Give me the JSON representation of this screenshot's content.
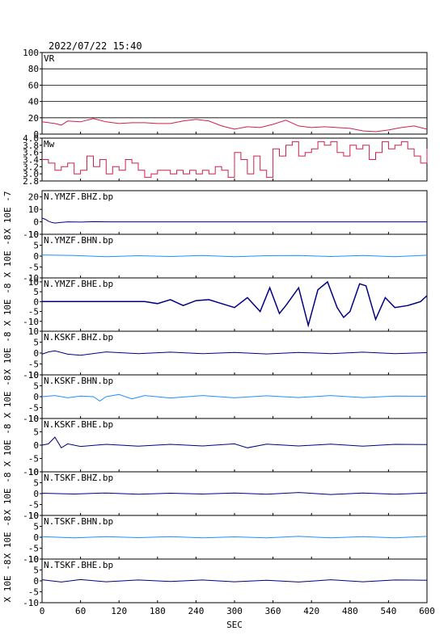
{
  "timestamp": "2022/07/22 15:40",
  "x_axis": {
    "label": "SEC",
    "ticks": [
      "0",
      "60",
      "120",
      "180",
      "240",
      "300",
      "360",
      "420",
      "480",
      "540",
      "600"
    ]
  },
  "chart_data": [
    {
      "type": "line",
      "panel": "VR",
      "label": "VR",
      "ylim": [
        0,
        100
      ],
      "yticks": [
        "100",
        "80",
        "60",
        "40",
        "20",
        "0"
      ],
      "grid": true,
      "color": "#d0204a",
      "series_x": [
        0,
        20,
        30,
        40,
        60,
        80,
        100,
        120,
        140,
        160,
        180,
        200,
        220,
        240,
        260,
        280,
        300,
        320,
        340,
        360,
        380,
        400,
        420,
        440,
        460,
        480,
        500,
        520,
        540,
        560,
        580,
        600
      ],
      "series_y": [
        15,
        13,
        11,
        16,
        15,
        19,
        15,
        13,
        14,
        14,
        13,
        13,
        16,
        18,
        16,
        10,
        6,
        9,
        8,
        12,
        17,
        10,
        8,
        9,
        8,
        7,
        4,
        3,
        5,
        8,
        10,
        6
      ]
    },
    {
      "type": "line",
      "panel": "Mw",
      "label": "Mw",
      "ylim": [
        2.8,
        4.0
      ],
      "yticks": [
        "4.0",
        "3.8",
        "3.6",
        "3.4",
        "3.2",
        "3.0",
        "2.8"
      ],
      "grid": false,
      "color": "#d0204a",
      "series_x": [
        0,
        10,
        20,
        30,
        40,
        50,
        60,
        70,
        80,
        90,
        100,
        110,
        120,
        130,
        140,
        150,
        160,
        170,
        180,
        190,
        200,
        210,
        220,
        230,
        240,
        250,
        260,
        270,
        280,
        290,
        300,
        310,
        320,
        330,
        340,
        350,
        360,
        370,
        380,
        390,
        400,
        410,
        420,
        430,
        440,
        450,
        460,
        470,
        480,
        490,
        500,
        510,
        520,
        530,
        540,
        550,
        560,
        570,
        580,
        590,
        600
      ],
      "series_y": [
        3.4,
        3.3,
        3.1,
        3.2,
        3.3,
        3.0,
        3.1,
        3.5,
        3.2,
        3.4,
        3.0,
        3.2,
        3.1,
        3.4,
        3.3,
        3.1,
        2.9,
        3.0,
        3.1,
        3.1,
        3.0,
        3.1,
        3.0,
        3.1,
        3.0,
        3.1,
        3.0,
        3.2,
        3.1,
        2.9,
        3.6,
        3.4,
        3.0,
        3.5,
        3.1,
        2.9,
        3.7,
        3.5,
        3.8,
        3.9,
        3.5,
        3.6,
        3.7,
        3.9,
        3.8,
        3.9,
        3.6,
        3.5,
        3.8,
        3.7,
        3.8,
        3.4,
        3.6,
        3.9,
        3.7,
        3.8,
        3.9,
        3.7,
        3.5,
        3.3,
        3.7
      ]
    },
    {
      "type": "line",
      "panel": "N.YMZF.BHZ.bp",
      "label": "N.YMZF.BHZ.bp",
      "ylabel": "X 10E -7",
      "ylim": [
        -10,
        25
      ],
      "yticks": [
        "20",
        "10",
        "0",
        "-10"
      ],
      "ytick_values": [
        20,
        10,
        0,
        -10
      ],
      "grid": false,
      "color": "#000080",
      "series_x": [
        0,
        5,
        10,
        15,
        20,
        30,
        40,
        60,
        80,
        100,
        120,
        200,
        300,
        400,
        500,
        600
      ],
      "series_y": [
        3,
        2,
        0.5,
        -0.5,
        -1,
        -0.5,
        0,
        -0.2,
        0.1,
        0,
        0,
        0,
        0,
        0,
        0,
        0
      ]
    },
    {
      "type": "line",
      "panel": "N.YMZF.BHN.bp",
      "label": "N.YMZF.BHN.bp",
      "ylabel": "X 10E -8",
      "ylim": [
        -10,
        10
      ],
      "yticks": [
        "10",
        "5",
        "0",
        "-5",
        "-10"
      ],
      "ytick_values": [
        10,
        5,
        0,
        -5,
        -10
      ],
      "grid": false,
      "color": "#1e90ff",
      "series_x": [
        0,
        50,
        100,
        150,
        200,
        250,
        300,
        350,
        400,
        450,
        500,
        550,
        600
      ],
      "series_y": [
        0.5,
        0.3,
        -0.3,
        0.2,
        -0.2,
        0.3,
        -0.3,
        0.2,
        0.3,
        -0.2,
        0.3,
        -0.3,
        0.4
      ]
    },
    {
      "type": "line",
      "panel": "N.YMZF.BHE.bp",
      "label": "N.YMZF.BHE.bp",
      "ylabel": "X 10E -8",
      "ylim": [
        -15,
        12
      ],
      "yticks": [
        "10",
        "5",
        "0",
        "-5",
        "-10"
      ],
      "ytick_values": [
        10,
        5,
        0,
        -5,
        -10
      ],
      "grid": false,
      "color": "#000080",
      "series_x": [
        0,
        40,
        80,
        120,
        160,
        180,
        200,
        220,
        240,
        260,
        280,
        300,
        320,
        340,
        355,
        370,
        380,
        400,
        415,
        430,
        445,
        460,
        470,
        480,
        495,
        505,
        520,
        535,
        550,
        570,
        590,
        600
      ],
      "series_y": [
        0,
        0,
        0,
        0,
        0,
        -1,
        1,
        -2,
        0.5,
        1,
        -1,
        -3,
        2,
        -5,
        7,
        -6,
        -2,
        7,
        -12,
        6,
        10,
        -3,
        -8,
        -5,
        9,
        8,
        -9,
        2,
        -3,
        -2,
        0,
        3
      ]
    },
    {
      "type": "line",
      "panel": "N.KSKF.BHZ.bp",
      "label": "N.KSKF.BHZ.bp",
      "ylabel": "X 10E -8",
      "ylim": [
        -10,
        10
      ],
      "yticks": [
        "10",
        "5",
        "0",
        "-5",
        "-10"
      ],
      "ytick_values": [
        10,
        5,
        0,
        -5,
        -10
      ],
      "grid": false,
      "color": "#000080",
      "series_x": [
        0,
        10,
        20,
        40,
        60,
        100,
        150,
        200,
        250,
        300,
        350,
        400,
        450,
        500,
        550,
        600
      ],
      "series_y": [
        -0.5,
        0.5,
        1,
        -0.5,
        -1,
        0.5,
        -0.3,
        0.4,
        -0.3,
        0.3,
        -0.4,
        0.3,
        -0.3,
        0.4,
        -0.3,
        0.2
      ]
    },
    {
      "type": "line",
      "panel": "N.KSKF.BHN.bp",
      "label": "N.KSKF.BHN.bp",
      "ylabel": "X 10E -8",
      "ylim": [
        -10,
        10
      ],
      "yticks": [
        "10",
        "5",
        "0",
        "-5",
        "-10"
      ],
      "ytick_values": [
        10,
        5,
        0,
        -5,
        -10
      ],
      "grid": false,
      "color": "#1e90ff",
      "series_x": [
        0,
        20,
        40,
        60,
        80,
        90,
        100,
        120,
        140,
        160,
        200,
        250,
        300,
        350,
        400,
        450,
        500,
        550,
        600
      ],
      "series_y": [
        0,
        0.5,
        -0.5,
        0.3,
        0,
        -2,
        0,
        1,
        -1,
        0.5,
        -0.6,
        0.5,
        -0.5,
        0.4,
        -0.4,
        0.5,
        -0.4,
        0.3,
        0.2
      ]
    },
    {
      "type": "line",
      "panel": "N.KSKF.BHE.bp",
      "label": "N.KSKF.BHE.bp",
      "ylabel": "X 10E -8",
      "ylim": [
        -10,
        10
      ],
      "yticks": [
        "10",
        "5",
        "0",
        "-5",
        "-10"
      ],
      "ytick_values": [
        10,
        5,
        0,
        -5,
        -10
      ],
      "grid": false,
      "color": "#000080",
      "series_x": [
        0,
        10,
        20,
        30,
        40,
        60,
        100,
        150,
        200,
        250,
        300,
        320,
        350,
        400,
        450,
        500,
        550,
        600
      ],
      "series_y": [
        0,
        0.5,
        3,
        -1,
        0.5,
        -0.5,
        0.3,
        -0.4,
        0.3,
        -0.3,
        0.5,
        -1,
        0.4,
        -0.3,
        0.4,
        -0.4,
        0.3,
        0.2
      ]
    },
    {
      "type": "line",
      "panel": "N.TSKF.BHZ.bp",
      "label": "N.TSKF.BHZ.bp",
      "ylabel": "X 10E -8",
      "ylim": [
        -10,
        10
      ],
      "yticks": [
        "10",
        "5",
        "0",
        "-5",
        "-10"
      ],
      "ytick_values": [
        10,
        5,
        0,
        -5,
        -10
      ],
      "grid": false,
      "color": "#000080",
      "series_x": [
        0,
        50,
        100,
        150,
        200,
        250,
        300,
        350,
        400,
        450,
        500,
        550,
        600
      ],
      "series_y": [
        0.2,
        -0.2,
        0.3,
        -0.3,
        0.2,
        -0.2,
        0.3,
        -0.3,
        0.5,
        -0.4,
        0.3,
        -0.3,
        0.3
      ]
    },
    {
      "type": "line",
      "panel": "N.TSKF.BHN.bp",
      "label": "N.TSKF.BHN.bp",
      "ylabel": "X 10E -8",
      "ylim": [
        -10,
        10
      ],
      "yticks": [
        "10",
        "5",
        "0",
        "-5",
        "-10"
      ],
      "ytick_values": [
        10,
        5,
        0,
        -5,
        -10
      ],
      "grid": false,
      "color": "#1e90ff",
      "series_x": [
        0,
        50,
        100,
        150,
        200,
        250,
        300,
        350,
        400,
        450,
        500,
        550,
        600
      ],
      "series_y": [
        0.3,
        -0.3,
        0.3,
        -0.2,
        0.3,
        -0.3,
        0.2,
        -0.3,
        0.4,
        -0.3,
        0.3,
        -0.3,
        0.4
      ]
    },
    {
      "type": "line",
      "panel": "N.TSKF.BHE.bp",
      "label": "N.TSKF.BHE.bp",
      "ylabel": "X 10E -8",
      "ylim": [
        -10,
        10
      ],
      "yticks": [
        "10",
        "5",
        "0",
        "-5",
        "-10"
      ],
      "ytick_values": [
        10,
        5,
        0,
        -5,
        -10
      ],
      "grid": false,
      "color": "#000080",
      "series_x": [
        0,
        30,
        60,
        100,
        150,
        200,
        250,
        300,
        350,
        400,
        450,
        500,
        550,
        600
      ],
      "series_y": [
        0.5,
        -0.5,
        0.6,
        -0.4,
        0.4,
        -0.3,
        0.4,
        -0.4,
        0.3,
        -0.5,
        0.5,
        -0.4,
        0.4,
        0.3
      ]
    }
  ]
}
